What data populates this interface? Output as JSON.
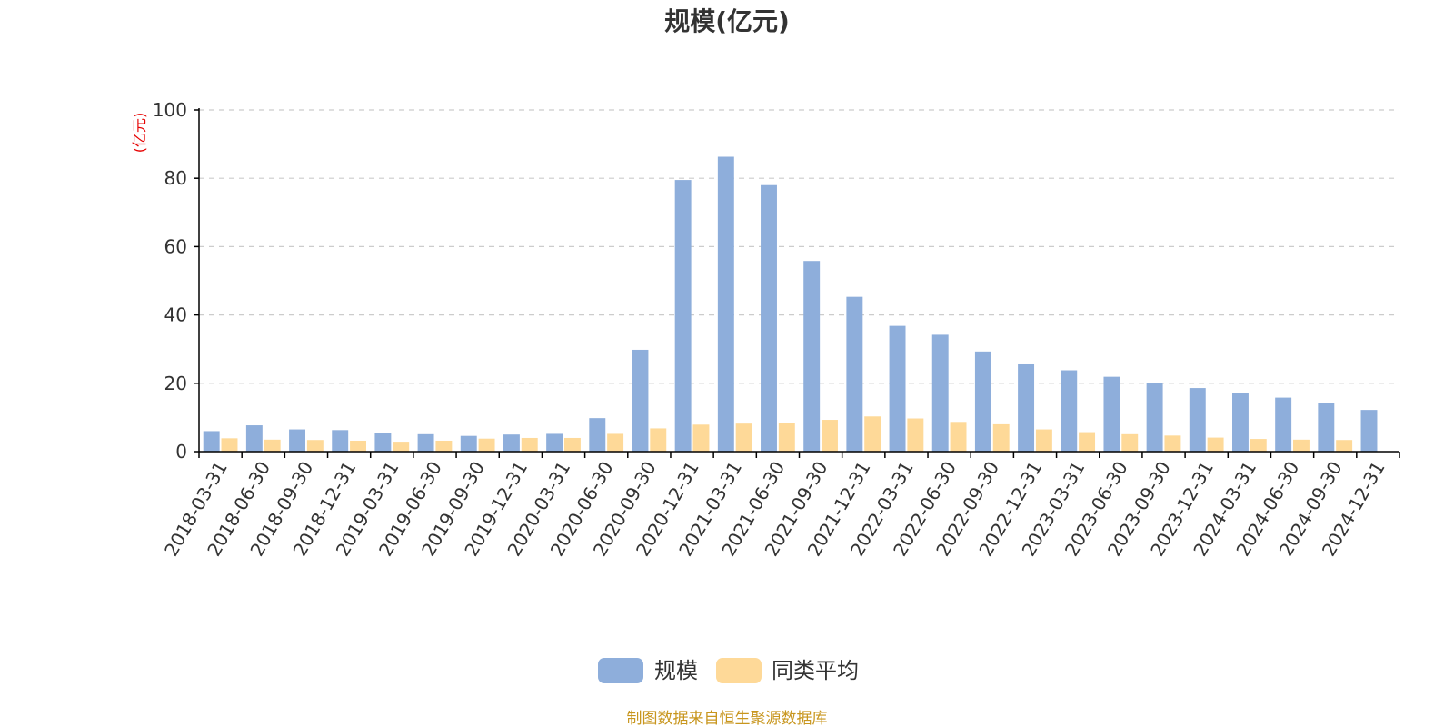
{
  "chart_data": {
    "type": "bar",
    "title": "规模(亿元)",
    "ylabel": "(亿元)",
    "ylim": [
      0,
      100
    ],
    "yticks": [
      "0",
      "20",
      "40",
      "60",
      "80",
      "100"
    ],
    "grid": true,
    "legend_position": "bottom",
    "categories": [
      "2018-03-31",
      "2018-06-30",
      "2018-09-30",
      "2018-12-31",
      "2019-03-31",
      "2019-06-30",
      "2019-09-30",
      "2019-12-31",
      "2020-03-31",
      "2020-06-30",
      "2020-09-30",
      "2020-12-31",
      "2021-03-31",
      "2021-06-30",
      "2021-09-30",
      "2021-12-31",
      "2022-03-31",
      "2022-06-30",
      "2022-09-30",
      "2022-12-31",
      "2023-03-31",
      "2023-06-30",
      "2023-09-30",
      "2023-12-31",
      "2024-03-31",
      "2024-06-30",
      "2024-09-30",
      "2024-12-31"
    ],
    "series": [
      {
        "name": "规模",
        "color": "#8eaedb",
        "values": [
          6.0,
          7.7,
          6.5,
          6.3,
          5.5,
          5.1,
          4.6,
          5.0,
          5.2,
          9.8,
          29.8,
          79.5,
          86.3,
          78.0,
          55.8,
          45.3,
          36.8,
          34.2,
          29.3,
          25.8,
          23.8,
          21.9,
          20.2,
          18.6,
          17.1,
          15.8,
          14.1,
          12.2
        ]
      },
      {
        "name": "同类平均",
        "color": "#fed998",
        "values": [
          3.9,
          3.5,
          3.4,
          3.2,
          2.9,
          3.2,
          3.8,
          4.0,
          4.0,
          5.2,
          6.8,
          7.9,
          8.2,
          8.3,
          9.3,
          10.3,
          9.7,
          8.7,
          8.0,
          6.5,
          5.7,
          5.1,
          4.7,
          4.1,
          3.7,
          3.5,
          3.4,
          null
        ]
      }
    ]
  },
  "footer": {
    "source": "制图数据来自恒生聚源数据库"
  }
}
